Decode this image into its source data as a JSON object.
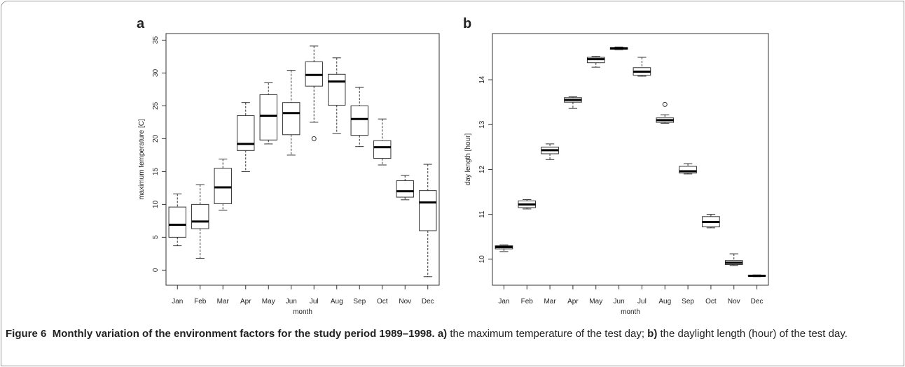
{
  "chart_data": [
    {
      "type": "box",
      "panel": "a",
      "xlabel": "month",
      "ylabel": "maximum temperature [C]",
      "categories": [
        "Jan",
        "Feb",
        "Mar",
        "Apr",
        "May",
        "Jun",
        "Jul",
        "Aug",
        "Sep",
        "Oct",
        "Nov",
        "Dec"
      ],
      "ylim": [
        -2.3,
        36
      ],
      "yticks": [
        0,
        5,
        10,
        15,
        20,
        25,
        30,
        35
      ],
      "boxes": [
        {
          "min": 3.7,
          "q1": 5.0,
          "median": 6.9,
          "q3": 9.6,
          "max": 11.6
        },
        {
          "min": 1.8,
          "q1": 6.3,
          "median": 7.4,
          "q3": 10.0,
          "max": 13.0
        },
        {
          "min": 9.1,
          "q1": 10.1,
          "median": 12.6,
          "q3": 15.5,
          "max": 16.9
        },
        {
          "min": 15.0,
          "q1": 18.2,
          "median": 19.2,
          "q3": 23.5,
          "max": 25.5
        },
        {
          "min": 19.2,
          "q1": 19.8,
          "median": 23.5,
          "q3": 26.7,
          "max": 28.5
        },
        {
          "min": 17.5,
          "q1": 20.6,
          "median": 23.9,
          "q3": 25.5,
          "max": 30.4
        },
        {
          "min": 22.5,
          "q1": 28.0,
          "median": 29.7,
          "q3": 31.7,
          "max": 34.1,
          "outliers": [
            20.0
          ]
        },
        {
          "min": 20.8,
          "q1": 25.1,
          "median": 28.7,
          "q3": 29.8,
          "max": 32.3
        },
        {
          "min": 18.8,
          "q1": 20.5,
          "median": 23.0,
          "q3": 25.0,
          "max": 27.8
        },
        {
          "min": 16.0,
          "q1": 17.0,
          "median": 18.7,
          "q3": 19.7,
          "max": 23.0
        },
        {
          "min": 10.7,
          "q1": 11.1,
          "median": 12.0,
          "q3": 13.6,
          "max": 14.4
        },
        {
          "min": -1.0,
          "q1": 6.0,
          "median": 10.3,
          "q3": 12.1,
          "max": 16.1
        }
      ]
    },
    {
      "type": "box",
      "panel": "b",
      "xlabel": "month",
      "ylabel": "day length [hour]",
      "categories": [
        "Jan",
        "Feb",
        "Mar",
        "Apr",
        "May",
        "Jun",
        "Jul",
        "Aug",
        "Sep",
        "Oct",
        "Nov",
        "Dec"
      ],
      "ylim": [
        9.42,
        15.03
      ],
      "yticks": [
        10,
        11,
        12,
        13,
        14
      ],
      "boxes": [
        {
          "min": 10.17,
          "q1": 10.23,
          "median": 10.27,
          "q3": 10.3,
          "max": 10.32
        },
        {
          "min": 11.12,
          "q1": 11.15,
          "median": 11.22,
          "q3": 11.3,
          "max": 11.33
        },
        {
          "min": 12.22,
          "q1": 12.35,
          "median": 12.43,
          "q3": 12.5,
          "max": 12.57
        },
        {
          "min": 13.36,
          "q1": 13.5,
          "median": 13.55,
          "q3": 13.6,
          "max": 13.62
        },
        {
          "min": 14.28,
          "q1": 14.38,
          "median": 14.46,
          "q3": 14.5,
          "max": 14.52
        },
        {
          "min": 14.67,
          "q1": 14.68,
          "median": 14.7,
          "q3": 14.72,
          "max": 14.73
        },
        {
          "min": 14.08,
          "q1": 14.1,
          "median": 14.18,
          "q3": 14.27,
          "max": 14.5
        },
        {
          "min": 13.03,
          "q1": 13.05,
          "median": 13.1,
          "q3": 13.15,
          "max": 13.22,
          "outliers": [
            13.45
          ]
        },
        {
          "min": 11.9,
          "q1": 11.92,
          "median": 11.96,
          "q3": 12.07,
          "max": 12.13
        },
        {
          "min": 10.7,
          "q1": 10.72,
          "median": 10.83,
          "q3": 10.95,
          "max": 11.0
        },
        {
          "min": 9.86,
          "q1": 9.88,
          "median": 9.92,
          "q3": 9.97,
          "max": 10.12
        },
        {
          "min": 9.61,
          "q1": 9.62,
          "median": 9.63,
          "q3": 9.64,
          "max": 9.65
        }
      ]
    }
  ],
  "caption": {
    "figure": "Figure 6",
    "title": "Monthly variation of the environment factors for the study period 1989–1998.",
    "parts": [
      {
        "label": "a)",
        "text": "the maximum temperature of the test day;"
      },
      {
        "label": "b)",
        "text": "the daylight length (hour) of the test day."
      }
    ]
  }
}
